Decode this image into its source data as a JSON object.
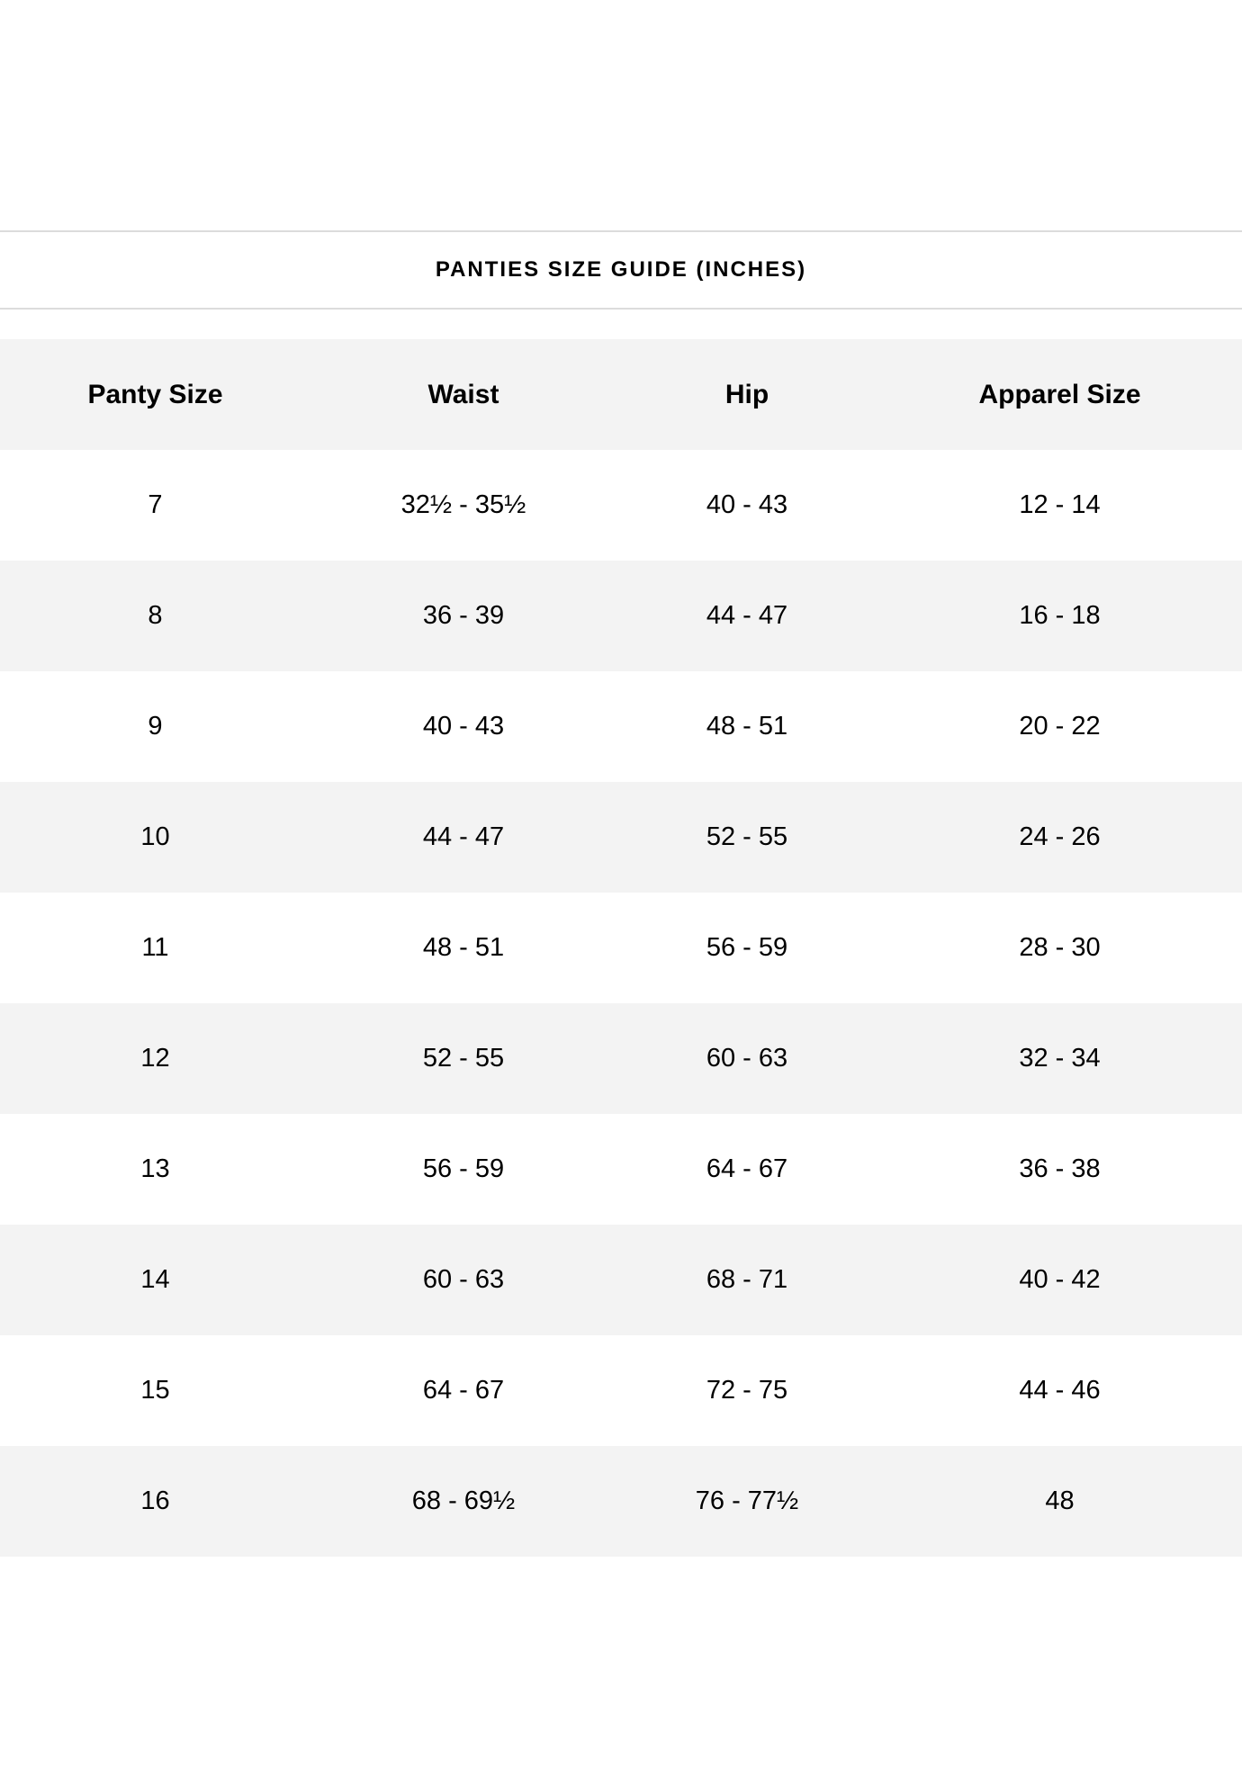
{
  "title": "PANTIES SIZE GUIDE (INCHES)",
  "table": {
    "headers": [
      "Panty Size",
      "Waist",
      "Hip",
      "Apparel Size"
    ],
    "rows": [
      [
        "7",
        "32½ - 35½",
        "40 - 43",
        "12 - 14"
      ],
      [
        "8",
        "36 - 39",
        "44 - 47",
        "16 - 18"
      ],
      [
        "9",
        "40 - 43",
        "48 - 51",
        "20 - 22"
      ],
      [
        "10",
        "44 - 47",
        "52 - 55",
        "24 - 26"
      ],
      [
        "11",
        "48 - 51",
        "56 - 59",
        "28 - 30"
      ],
      [
        "12",
        "52 - 55",
        "60 - 63",
        "32 - 34"
      ],
      [
        "13",
        "56 - 59",
        "64 - 67",
        "36 - 38"
      ],
      [
        "14",
        "60 - 63",
        "68 - 71",
        "40 - 42"
      ],
      [
        "15",
        "64 - 67",
        "72 - 75",
        "44 - 46"
      ],
      [
        "16",
        "68 - 69½",
        "76 - 77½",
        "48"
      ]
    ]
  },
  "colors": {
    "stripe": "#f3f3f3",
    "divider": "#dcdcdc",
    "text": "#000000"
  }
}
